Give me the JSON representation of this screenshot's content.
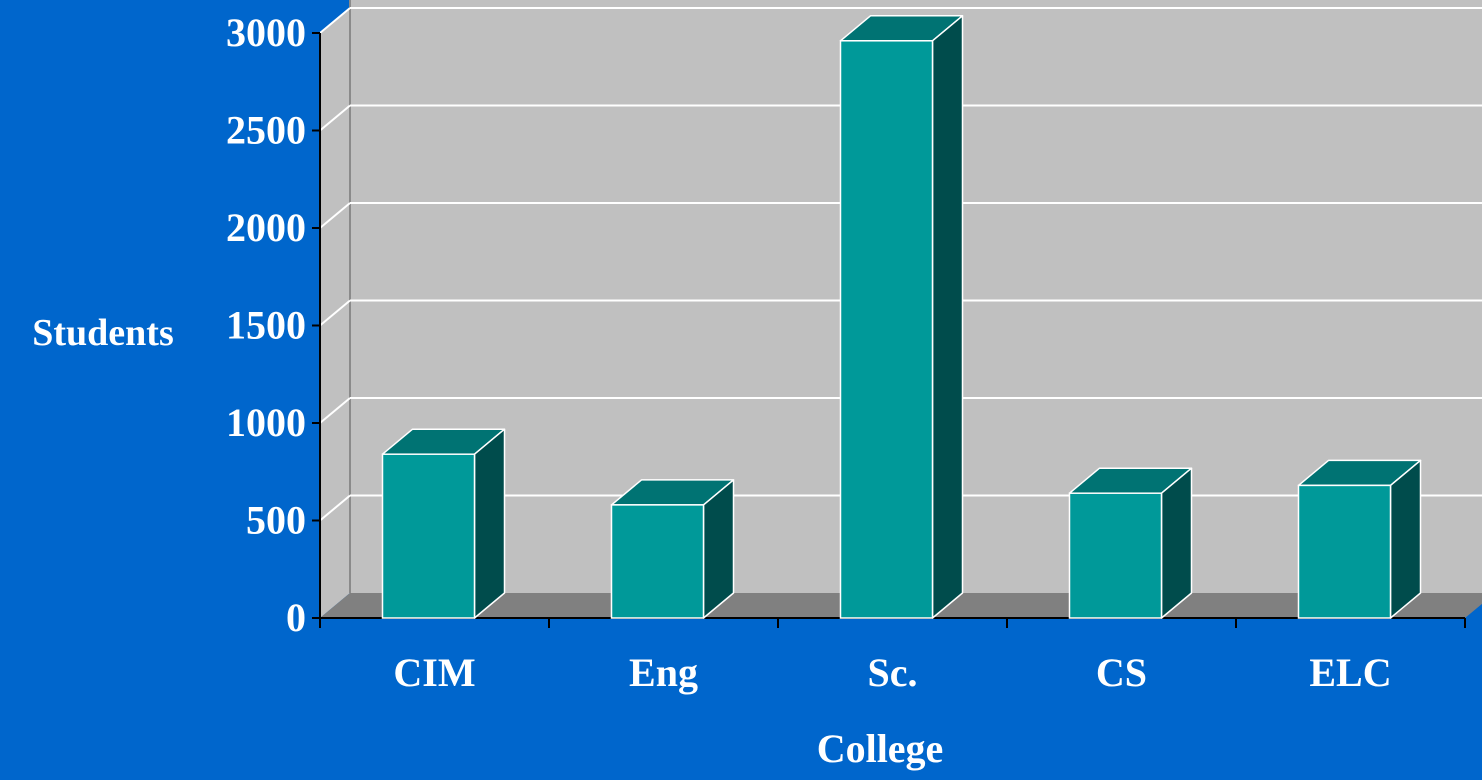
{
  "colors": {
    "background": "#0066CC",
    "wall": "#C0C0C0",
    "floor": "#808080",
    "bar_front": "#009999",
    "bar_top": "#007373",
    "bar_side": "#004C4C",
    "grid": "#FFFFFF",
    "text": "#FFFFFF"
  },
  "chart_data": {
    "type": "bar",
    "style": "3d-column",
    "title": "",
    "xlabel": "College",
    "ylabel": "Students",
    "categories": [
      "CIM",
      "Eng",
      "Sc.",
      "CS",
      "ELC"
    ],
    "values": [
      840,
      580,
      2960,
      640,
      680
    ],
    "ylim": [
      0,
      3000
    ],
    "yticks": [
      0,
      500,
      1000,
      1500,
      2000,
      2500,
      3000
    ],
    "grid": true,
    "legend": "none"
  }
}
